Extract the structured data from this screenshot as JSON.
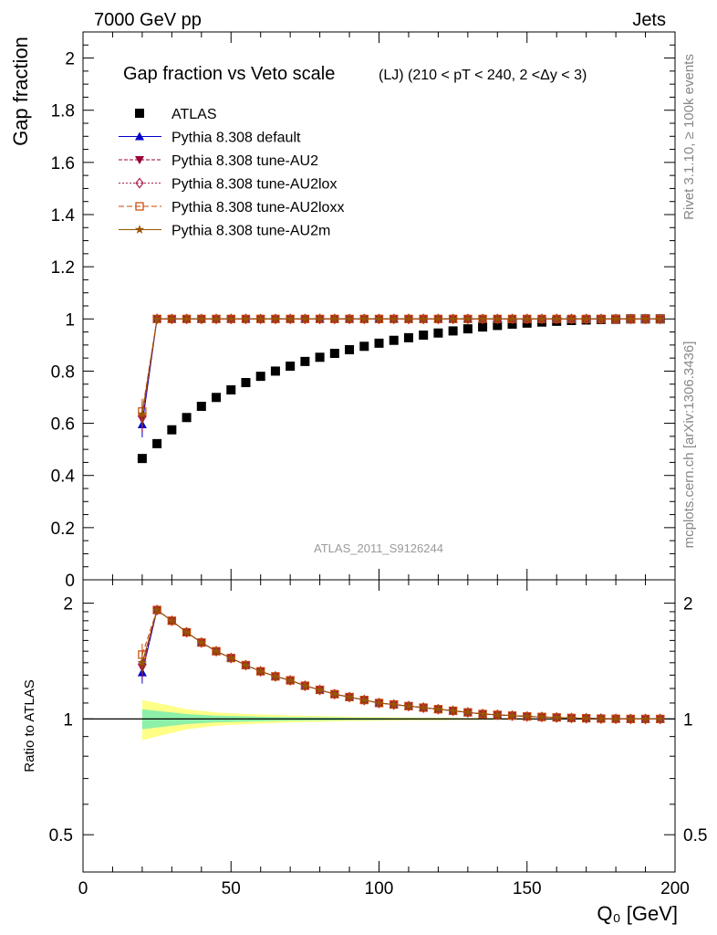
{
  "header": {
    "left": "7000 GeV pp",
    "right": "Jets"
  },
  "side_labels": {
    "top": "Rivet 3.1.10, ≥ 100k events",
    "bottom": "mcplots.cern.ch [arXiv:1306.3436]"
  },
  "colors": {
    "data": "#000000",
    "default": "#0000cc",
    "au2": "#990033",
    "au2lox": "#aa2255",
    "au2loxx": "#cc4400",
    "au2m": "#995500",
    "band_inner": "#8ef0a8",
    "band_outer": "#ffff88"
  },
  "chart_data": [
    {
      "type": "scatter",
      "title": "Gap fraction vs Veto scale",
      "subtitle": "(LJ) (210 < pT < 240, 2 <Δy < 3)",
      "ylabel": "Gap fraction",
      "watermark": "ATLAS_2011_S9126244",
      "xlim": [
        0,
        200
      ],
      "ylim": [
        0,
        2.1
      ],
      "yticks": [
        0,
        0.2,
        0.4,
        0.6,
        0.8,
        1,
        1.2,
        1.4,
        1.6,
        1.8,
        2
      ],
      "ytick_labels": [
        "0",
        "0.2",
        "0.4",
        "0.6",
        "0.8",
        "1",
        "1.2",
        "1.4",
        "1.6",
        "1.8",
        "2"
      ],
      "legend_position": "top-left",
      "x": [
        20,
        25,
        30,
        35,
        40,
        45,
        50,
        55,
        60,
        65,
        70,
        75,
        80,
        85,
        90,
        95,
        100,
        105,
        110,
        115,
        120,
        125,
        130,
        135,
        140,
        145,
        150,
        155,
        160,
        165,
        170,
        175,
        180,
        185,
        190,
        195
      ],
      "series": [
        {
          "name": "ATLAS",
          "marker": "square",
          "values": [
            0.465,
            0.522,
            0.575,
            0.622,
            0.665,
            0.699,
            0.728,
            0.756,
            0.78,
            0.8,
            0.819,
            0.837,
            0.853,
            0.868,
            0.882,
            0.895,
            0.907,
            0.918,
            0.928,
            0.938,
            0.946,
            0.954,
            0.962,
            0.969,
            0.975,
            0.98,
            0.984,
            0.988,
            0.991,
            0.994,
            0.996,
            0.998,
            0.999,
            1.0,
            1.0,
            1.0
          ]
        },
        {
          "name": "Pythia 8.308 default",
          "marker": "triangle",
          "values": [
            0.595,
            1,
            1,
            1,
            1,
            1,
            1,
            1,
            1,
            1,
            1,
            1,
            1,
            1,
            1,
            1,
            1,
            1,
            1,
            1,
            1,
            1,
            1,
            1,
            1,
            1,
            1,
            1,
            1,
            1,
            1,
            1,
            1,
            1,
            1,
            1
          ]
        },
        {
          "name": "Pythia 8.308 tune-AU2",
          "marker": "triangle-down",
          "values": [
            0.615,
            1,
            1,
            1,
            1,
            1,
            1,
            1,
            1,
            1,
            1,
            1,
            1,
            1,
            1,
            1,
            1,
            1,
            1,
            1,
            1,
            1,
            1,
            1,
            1,
            1,
            1,
            1,
            1,
            1,
            1,
            1,
            1,
            1,
            1,
            1
          ]
        },
        {
          "name": "Pythia 8.308 tune-AU2lox",
          "marker": "diamond",
          "values": [
            0.625,
            1,
            1,
            1,
            1,
            1,
            1,
            1,
            1,
            1,
            1,
            1,
            1,
            1,
            1,
            1,
            1,
            1,
            1,
            1,
            1,
            1,
            1,
            1,
            1,
            1,
            1,
            1,
            1,
            1,
            1,
            1,
            1,
            1,
            1,
            1
          ]
        },
        {
          "name": "Pythia 8.308 tune-AU2loxx",
          "marker": "open-square",
          "values": [
            0.645,
            1,
            1,
            1,
            1,
            1,
            1,
            1,
            1,
            1,
            1,
            1,
            1,
            1,
            1,
            1,
            1,
            1,
            1,
            1,
            1,
            1,
            1,
            1,
            1,
            1,
            1,
            1,
            1,
            1,
            1,
            1,
            1,
            1,
            1,
            1
          ]
        },
        {
          "name": "Pythia 8.308 tune-AU2m",
          "marker": "star",
          "values": [
            0.635,
            1,
            1,
            1,
            1,
            1,
            1,
            1,
            1,
            1,
            1,
            1,
            1,
            1,
            1,
            1,
            1,
            1,
            1,
            1,
            1,
            1,
            1,
            1,
            1,
            1,
            1,
            1,
            1,
            1,
            1,
            1,
            1,
            1,
            1,
            1
          ]
        }
      ]
    },
    {
      "type": "line",
      "ylabel": "Ratio to ATLAS",
      "xlabel": "Q₀ [GeV]",
      "xlim": [
        0,
        200
      ],
      "xticks": [
        0,
        50,
        100,
        150,
        200
      ],
      "xtick_labels": [
        "0",
        "50",
        "100",
        "150",
        "200"
      ],
      "ylim": [
        0.4,
        2.3
      ],
      "yticks": [
        0.5,
        1,
        2
      ],
      "ytick_labels": [
        "0.5",
        "1",
        "2"
      ],
      "x": [
        20,
        25,
        30,
        35,
        40,
        45,
        50,
        55,
        60,
        65,
        70,
        75,
        80,
        85,
        90,
        95,
        100,
        105,
        110,
        115,
        120,
        125,
        130,
        135,
        140,
        145,
        150,
        155,
        160,
        165,
        170,
        175,
        180,
        185,
        190,
        195
      ],
      "series": [
        {
          "name": "Pythia 8.308 default",
          "values": [
            1.32,
            1.92,
            1.8,
            1.68,
            1.58,
            1.5,
            1.44,
            1.38,
            1.33,
            1.29,
            1.26,
            1.22,
            1.19,
            1.16,
            1.14,
            1.12,
            1.1,
            1.09,
            1.08,
            1.07,
            1.06,
            1.05,
            1.04,
            1.03,
            1.025,
            1.02,
            1.015,
            1.012,
            1.009,
            1.006,
            1.004,
            1.002,
            1.001,
            1.0,
            1.0,
            1.0
          ]
        },
        {
          "name": "Pythia 8.308 tune-AU2",
          "values": [
            1.36,
            1.92,
            1.8,
            1.68,
            1.58,
            1.5,
            1.44,
            1.38,
            1.33,
            1.29,
            1.26,
            1.22,
            1.19,
            1.16,
            1.14,
            1.12,
            1.1,
            1.09,
            1.08,
            1.07,
            1.06,
            1.05,
            1.04,
            1.03,
            1.025,
            1.02,
            1.015,
            1.012,
            1.009,
            1.006,
            1.004,
            1.002,
            1.001,
            1.0,
            1.0,
            1.0
          ]
        },
        {
          "name": "Pythia 8.308 tune-AU2lox",
          "values": [
            1.39,
            1.92,
            1.8,
            1.68,
            1.58,
            1.5,
            1.44,
            1.38,
            1.33,
            1.29,
            1.26,
            1.22,
            1.19,
            1.16,
            1.14,
            1.12,
            1.1,
            1.09,
            1.08,
            1.07,
            1.06,
            1.05,
            1.04,
            1.03,
            1.025,
            1.02,
            1.015,
            1.012,
            1.009,
            1.006,
            1.004,
            1.002,
            1.001,
            1.0,
            1.0,
            1.0
          ]
        },
        {
          "name": "Pythia 8.308 tune-AU2loxx",
          "values": [
            1.47,
            1.92,
            1.8,
            1.68,
            1.58,
            1.5,
            1.44,
            1.38,
            1.33,
            1.29,
            1.26,
            1.22,
            1.19,
            1.16,
            1.14,
            1.12,
            1.1,
            1.09,
            1.08,
            1.07,
            1.06,
            1.05,
            1.04,
            1.03,
            1.025,
            1.02,
            1.015,
            1.012,
            1.009,
            1.006,
            1.004,
            1.002,
            1.001,
            1.0,
            1.0,
            1.0
          ]
        },
        {
          "name": "Pythia 8.308 tune-AU2m",
          "values": [
            1.4,
            1.92,
            1.8,
            1.68,
            1.58,
            1.5,
            1.44,
            1.38,
            1.33,
            1.29,
            1.26,
            1.22,
            1.19,
            1.16,
            1.14,
            1.12,
            1.1,
            1.09,
            1.08,
            1.07,
            1.06,
            1.05,
            1.04,
            1.03,
            1.025,
            1.02,
            1.015,
            1.012,
            1.009,
            1.006,
            1.004,
            1.002,
            1.001,
            1.0,
            1.0,
            1.0
          ]
        }
      ],
      "band_inner": [
        0.06,
        0.05,
        0.04,
        0.03,
        0.025,
        0.02,
        0.018,
        0.016,
        0.014,
        0.012,
        0.011,
        0.01,
        0.009,
        0.008,
        0.007,
        0.006,
        0.006,
        0.005,
        0.005,
        0.004,
        0.004,
        0.004,
        0.003,
        0.003,
        0.003,
        0.003,
        0.002,
        0.002,
        0.002,
        0.002,
        0.002,
        0.002,
        0.002,
        0.002,
        0.002,
        0.002
      ],
      "band_outer": [
        0.12,
        0.1,
        0.08,
        0.06,
        0.05,
        0.04,
        0.035,
        0.03,
        0.027,
        0.024,
        0.021,
        0.019,
        0.017,
        0.015,
        0.013,
        0.012,
        0.011,
        0.01,
        0.009,
        0.008,
        0.008,
        0.007,
        0.006,
        0.006,
        0.005,
        0.005,
        0.005,
        0.004,
        0.004,
        0.004,
        0.004,
        0.003,
        0.003,
        0.003,
        0.003,
        0.003
      ]
    }
  ]
}
